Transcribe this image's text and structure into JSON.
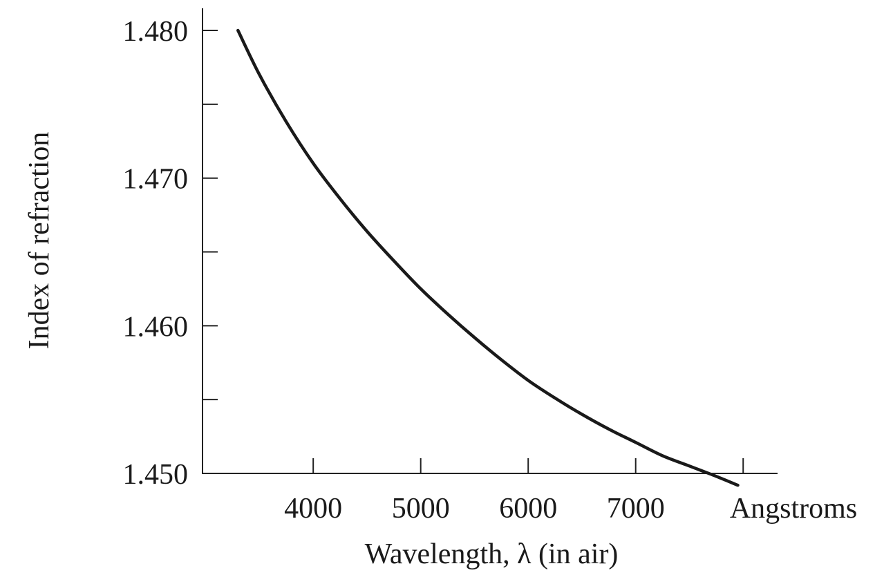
{
  "chart_data": {
    "type": "line",
    "title": "",
    "xlabel": "Wavelength, λ (in air)",
    "ylabel": "Index of refraction",
    "x_unit_label": "Angstroms",
    "xlim": [
      2970,
      8320
    ],
    "ylim": [
      1.45,
      1.4815
    ],
    "x_ticks": [
      4000,
      5000,
      6000,
      7000,
      8000
    ],
    "x_tick_labels": [
      "4000",
      "5000",
      "6000",
      "7000"
    ],
    "y_ticks": [
      1.45,
      1.455,
      1.46,
      1.465,
      1.47,
      1.475,
      1.48
    ],
    "y_tick_labels": [
      "1.450",
      "1.460",
      "1.470",
      "1.480"
    ],
    "grid": false,
    "legend": "none",
    "series": [
      {
        "x": [
          3300,
          3500,
          3750,
          4000,
          4250,
          4500,
          4750,
          5000,
          5250,
          5500,
          5750,
          6000,
          6250,
          6500,
          6750,
          7000,
          7250,
          7500,
          7750,
          7950
        ],
        "y": [
          1.48,
          1.477,
          1.4738,
          1.471,
          1.4686,
          1.4664,
          1.4644,
          1.4625,
          1.4608,
          1.4592,
          1.4577,
          1.4563,
          1.4551,
          1.454,
          1.453,
          1.4521,
          1.4512,
          1.4505,
          1.4498,
          1.4492
        ],
        "color": "#1a1a1a"
      }
    ]
  }
}
